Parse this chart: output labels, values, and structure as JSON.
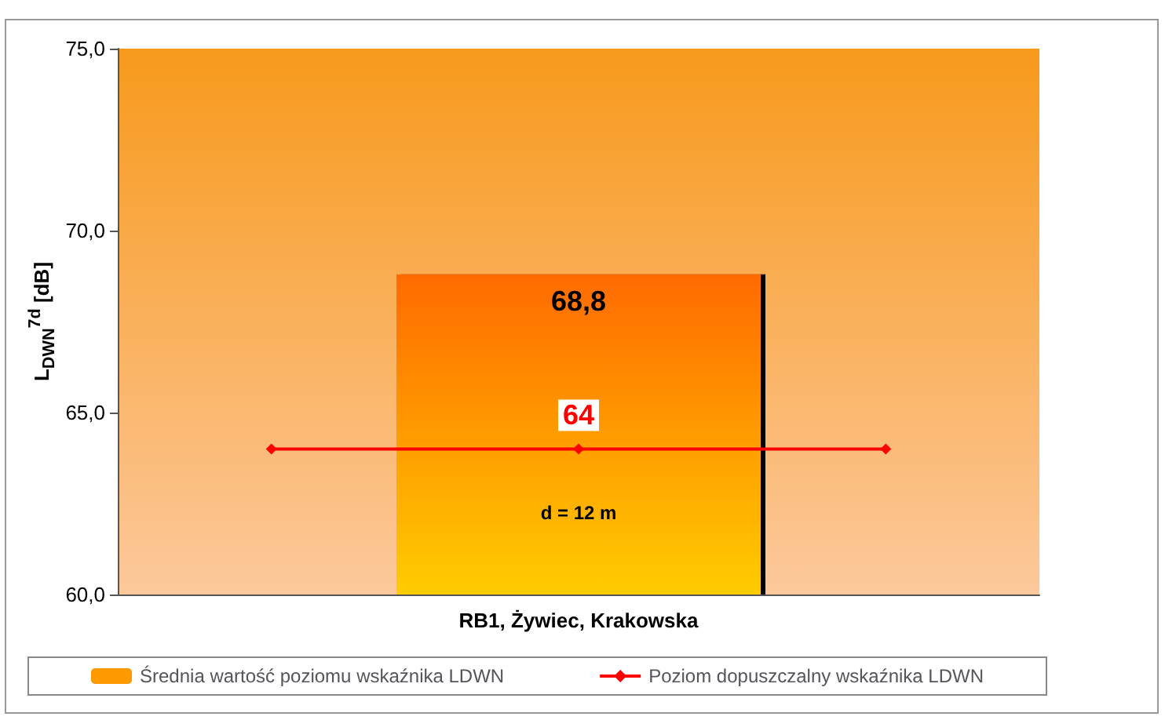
{
  "chart_data": {
    "type": "bar",
    "ylabel": "L$_{DWN}$$^{7d}$ [dB]",
    "categories": [
      null,
      "RB1, Żywiec, Krakowska",
      null
    ],
    "series": [
      {
        "name": "Średnia wartość poziomu wskaźnika LDWN",
        "colors": [
          null,
          [
            "#ff6a00",
            "#ffcc00"
          ],
          null
        ],
        "color": "#ff9900",
        "values": [
          null,
          68.8,
          null
        ],
        "value_labels": [
          null,
          "68,8",
          null
        ]
      },
      {
        "type": "line",
        "name": "Poziom dopuszczalny wskaźnika LDWN",
        "color": "#ff0000",
        "values": [
          64,
          64,
          64
        ],
        "value_labels": [
          null,
          "64",
          null
        ],
        "marker": "diamond"
      }
    ],
    "ylim": [
      60,
      75
    ],
    "yticks": [
      {
        "value": 60,
        "label": "60,0"
      },
      {
        "value": 65,
        "label": "65,0"
      },
      {
        "value": 70,
        "label": "70,0"
      },
      {
        "value": 75,
        "label": "75,0"
      }
    ],
    "annotations": [
      "d = 12 m"
    ],
    "grid": false,
    "legend": "bottom"
  }
}
